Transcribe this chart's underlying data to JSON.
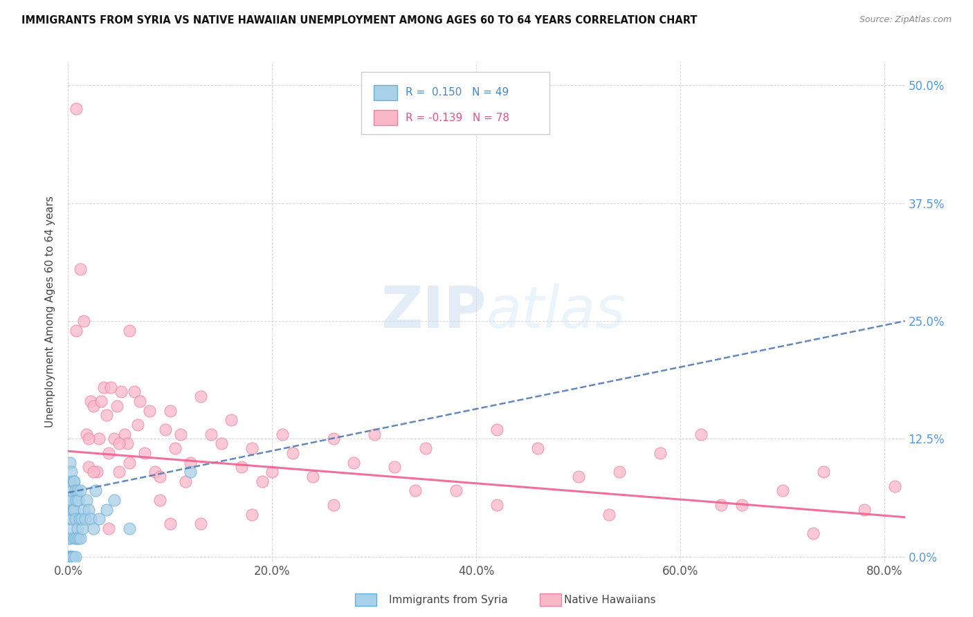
{
  "title": "IMMIGRANTS FROM SYRIA VS NATIVE HAWAIIAN UNEMPLOYMENT AMONG AGES 60 TO 64 YEARS CORRELATION CHART",
  "source": "Source: ZipAtlas.com",
  "xlabel_ticks": [
    "0.0%",
    "20.0%",
    "40.0%",
    "60.0%",
    "80.0%"
  ],
  "xlabel_tick_vals": [
    0.0,
    0.2,
    0.4,
    0.6,
    0.8
  ],
  "ylabel_ticks": [
    "0.0%",
    "12.5%",
    "25.0%",
    "37.5%",
    "50.0%"
  ],
  "ylabel_tick_vals": [
    0.0,
    0.125,
    0.25,
    0.375,
    0.5
  ],
  "ylabel": "Unemployment Among Ages 60 to 64 years",
  "legend_label1": "Immigrants from Syria",
  "legend_label2": "Native Hawaiians",
  "color_syria": "#a8d0e8",
  "color_syria_edge": "#6aaed6",
  "color_syria_line": "#4575b4",
  "color_hawaii": "#f9b8c8",
  "color_hawaii_edge": "#f080a0",
  "color_hawaii_line": "#f06090",
  "xlim": [
    0.0,
    0.82
  ],
  "ylim": [
    -0.005,
    0.525
  ],
  "syria_x": [
    0.001,
    0.001,
    0.001,
    0.001,
    0.001,
    0.002,
    0.002,
    0.002,
    0.002,
    0.002,
    0.003,
    0.003,
    0.003,
    0.003,
    0.004,
    0.004,
    0.004,
    0.005,
    0.005,
    0.005,
    0.006,
    0.006,
    0.006,
    0.007,
    0.007,
    0.007,
    0.008,
    0.008,
    0.009,
    0.009,
    0.01,
    0.01,
    0.011,
    0.012,
    0.012,
    0.013,
    0.014,
    0.015,
    0.017,
    0.018,
    0.02,
    0.022,
    0.025,
    0.027,
    0.03,
    0.038,
    0.045,
    0.06,
    0.12
  ],
  "syria_y": [
    0.0,
    0.0,
    0.02,
    0.04,
    0.06,
    0.0,
    0.02,
    0.05,
    0.08,
    0.1,
    0.0,
    0.03,
    0.06,
    0.09,
    0.0,
    0.04,
    0.07,
    0.0,
    0.05,
    0.08,
    0.02,
    0.05,
    0.08,
    0.0,
    0.04,
    0.07,
    0.02,
    0.06,
    0.03,
    0.07,
    0.02,
    0.06,
    0.04,
    0.02,
    0.07,
    0.04,
    0.03,
    0.05,
    0.04,
    0.06,
    0.05,
    0.04,
    0.03,
    0.07,
    0.04,
    0.05,
    0.06,
    0.03,
    0.09
  ],
  "hawaii_x": [
    0.008,
    0.012,
    0.015,
    0.018,
    0.02,
    0.022,
    0.025,
    0.028,
    0.03,
    0.032,
    0.035,
    0.038,
    0.04,
    0.042,
    0.045,
    0.048,
    0.05,
    0.052,
    0.055,
    0.058,
    0.06,
    0.065,
    0.068,
    0.07,
    0.075,
    0.08,
    0.085,
    0.09,
    0.095,
    0.1,
    0.105,
    0.11,
    0.115,
    0.12,
    0.13,
    0.14,
    0.15,
    0.16,
    0.17,
    0.18,
    0.19,
    0.2,
    0.21,
    0.22,
    0.24,
    0.26,
    0.28,
    0.3,
    0.32,
    0.35,
    0.38,
    0.42,
    0.46,
    0.5,
    0.54,
    0.58,
    0.62,
    0.66,
    0.7,
    0.74,
    0.008,
    0.78,
    0.81,
    0.025,
    0.04,
    0.06,
    0.09,
    0.13,
    0.18,
    0.26,
    0.34,
    0.42,
    0.53,
    0.64,
    0.73,
    0.02,
    0.05,
    0.1
  ],
  "hawaii_y": [
    0.475,
    0.305,
    0.25,
    0.13,
    0.095,
    0.165,
    0.16,
    0.09,
    0.125,
    0.165,
    0.18,
    0.15,
    0.11,
    0.18,
    0.125,
    0.16,
    0.09,
    0.175,
    0.13,
    0.12,
    0.1,
    0.175,
    0.14,
    0.165,
    0.11,
    0.155,
    0.09,
    0.085,
    0.135,
    0.155,
    0.115,
    0.13,
    0.08,
    0.1,
    0.17,
    0.13,
    0.12,
    0.145,
    0.095,
    0.115,
    0.08,
    0.09,
    0.13,
    0.11,
    0.085,
    0.125,
    0.1,
    0.13,
    0.095,
    0.115,
    0.07,
    0.135,
    0.115,
    0.085,
    0.09,
    0.11,
    0.13,
    0.055,
    0.07,
    0.09,
    0.24,
    0.05,
    0.075,
    0.09,
    0.03,
    0.24,
    0.06,
    0.035,
    0.045,
    0.055,
    0.07,
    0.055,
    0.045,
    0.055,
    0.025,
    0.125,
    0.12,
    0.035
  ],
  "syria_trend_x": [
    0.0,
    0.82
  ],
  "syria_trend_y": [
    0.068,
    0.25
  ],
  "hawaii_trend_x": [
    0.0,
    0.82
  ],
  "hawaii_trend_y": [
    0.112,
    0.042
  ]
}
